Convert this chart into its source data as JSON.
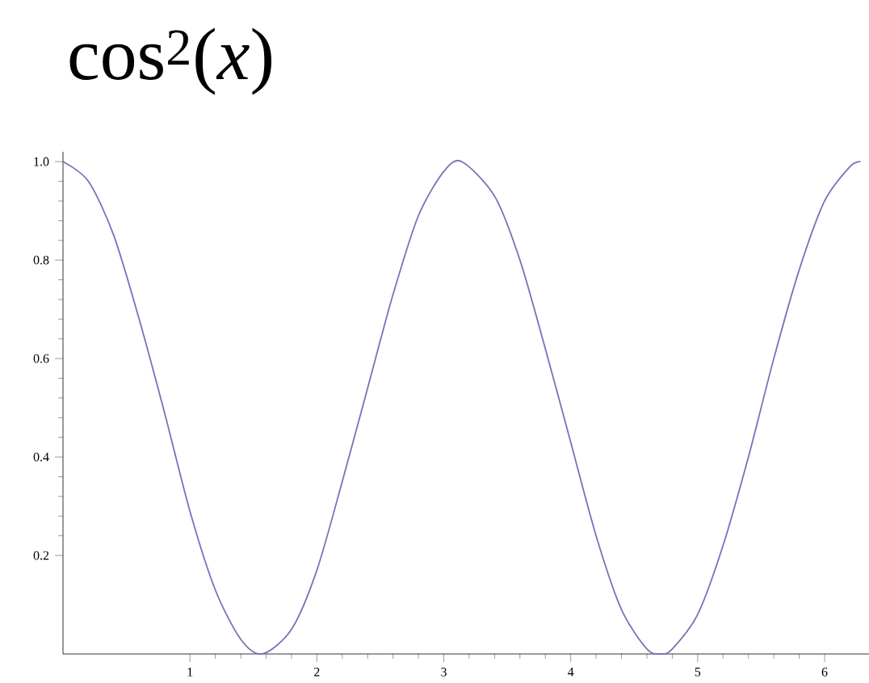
{
  "chart_data": {
    "type": "line",
    "title": "cos$^{2}$(*x*)",
    "color": "#7474b8",
    "x": [
      0,
      0.2,
      0.4,
      0.6,
      0.8,
      1.0,
      1.2,
      1.4,
      1.571,
      1.8,
      2.0,
      2.2,
      2.4,
      2.6,
      2.8,
      3.0,
      3.142,
      3.4,
      3.6,
      3.8,
      4.0,
      4.2,
      4.4,
      4.6,
      4.712,
      4.8,
      5.0,
      5.2,
      5.4,
      5.6,
      5.8,
      6.0,
      6.2,
      6.283
    ],
    "values": [
      1.0,
      0.96,
      0.85,
      0.68,
      0.49,
      0.29,
      0.13,
      0.03,
      0.0,
      0.05,
      0.17,
      0.35,
      0.54,
      0.73,
      0.89,
      0.98,
      1.0,
      0.93,
      0.8,
      0.62,
      0.43,
      0.24,
      0.09,
      0.01,
      0.0,
      0.01,
      0.08,
      0.22,
      0.4,
      0.6,
      0.78,
      0.92,
      0.99,
      1.0
    ],
    "xlim": [
      0,
      6.35
    ],
    "ylim": [
      0,
      1.02
    ],
    "xticks": [
      1,
      2,
      3,
      4,
      5,
      6
    ],
    "yticks": [
      0.2,
      0.4,
      0.6,
      0.8,
      {
        "value": 1,
        "label": "1.0"
      }
    ],
    "grid": false,
    "marker": "none",
    "line_style": "solid"
  }
}
